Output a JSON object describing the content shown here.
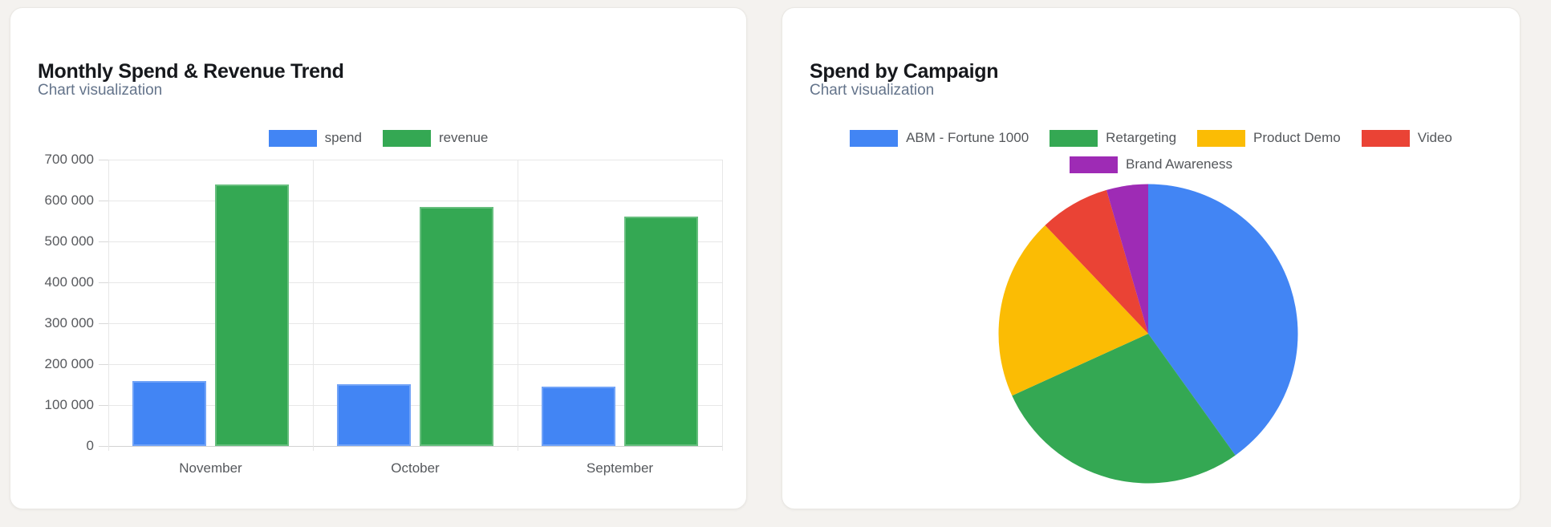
{
  "page": {
    "background_color": "#f4f2ef"
  },
  "chart_data": [
    {
      "type": "bar",
      "title": "Monthly Spend & Revenue Trend",
      "subtitle": "Chart visualization",
      "categories": [
        "November",
        "October",
        "September"
      ],
      "series": [
        {
          "name": "spend",
          "color": "#4285F4",
          "values": [
            159000,
            151000,
            146000
          ]
        },
        {
          "name": "revenue",
          "color": "#34A853",
          "values": [
            640000,
            585000,
            560000
          ]
        }
      ],
      "xlabel": "",
      "ylabel": "",
      "ylim": [
        0,
        700000
      ],
      "ytick_step": 100000,
      "ytick_labels": [
        "0",
        "100 000",
        "200 000",
        "300 000",
        "400 000",
        "500 000",
        "600 000",
        "700 000"
      ],
      "number_format": "space-thousands",
      "grid": true,
      "legend_position": "top"
    },
    {
      "type": "pie",
      "title": "Spend by Campaign",
      "subtitle": "Chart visualization",
      "slices": [
        {
          "label": "ABM - Fortune 1000",
          "color": "#4285F4",
          "percent": 40.1
        },
        {
          "label": "Retargeting",
          "color": "#34A853",
          "percent": 28.1
        },
        {
          "label": "Product Demo",
          "color": "#FBBC04",
          "percent": 19.7
        },
        {
          "label": "Video",
          "color": "#EA4335",
          "percent": 7.6
        },
        {
          "label": "Brand Awareness",
          "color": "#9E2BB5",
          "percent": 4.5
        }
      ],
      "start_angle_deg": 0,
      "direction": "clockwise",
      "legend_position": "top",
      "legend_rows": 2
    }
  ]
}
